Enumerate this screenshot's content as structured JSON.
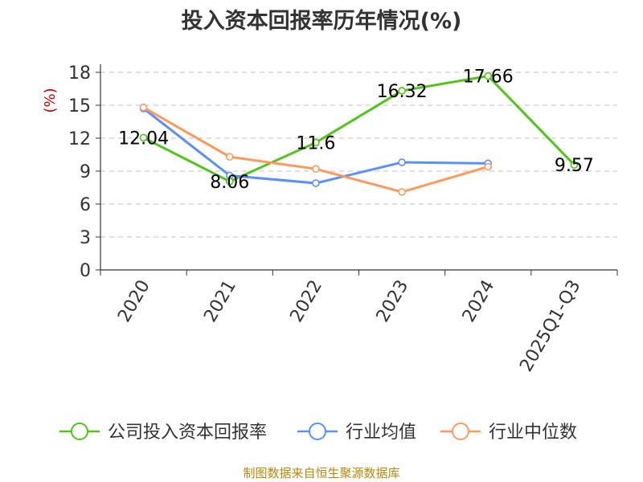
{
  "colors": {
    "series": [
      "#52c41a",
      "#5b8ff9",
      "#ff9a5c"
    ],
    "ylabel": "#cc0000",
    "source": "#b8860b",
    "grid": "#c0c0c0"
  },
  "chart_data": {
    "type": "line",
    "title": "投入资本回报率历年情况(%)",
    "ylabel": "(%)",
    "xlabel": "",
    "ylim": [
      0,
      18
    ],
    "yticks": [
      0,
      3,
      6,
      9,
      12,
      15,
      18
    ],
    "categories": [
      "2020",
      "2021",
      "2022",
      "2023",
      "2024",
      "2025Q1-Q3"
    ],
    "grid": "horizontal dashed",
    "legend_position": "bottom",
    "series": [
      {
        "name": "公司投入资本回报率",
        "values": [
          12.04,
          8.06,
          11.6,
          16.32,
          17.66,
          9.57
        ],
        "labels": [
          "12.04",
          "8.06",
          "11.6",
          "16.32",
          "17.66",
          "9.57"
        ]
      },
      {
        "name": "行业均值",
        "values": [
          14.7,
          8.6,
          7.9,
          9.8,
          9.7,
          null
        ]
      },
      {
        "name": "行业中位数",
        "values": [
          14.8,
          10.3,
          9.2,
          7.1,
          9.4,
          null
        ]
      }
    ]
  },
  "footer": {
    "source": "制图数据来自恒生聚源数据库"
  }
}
